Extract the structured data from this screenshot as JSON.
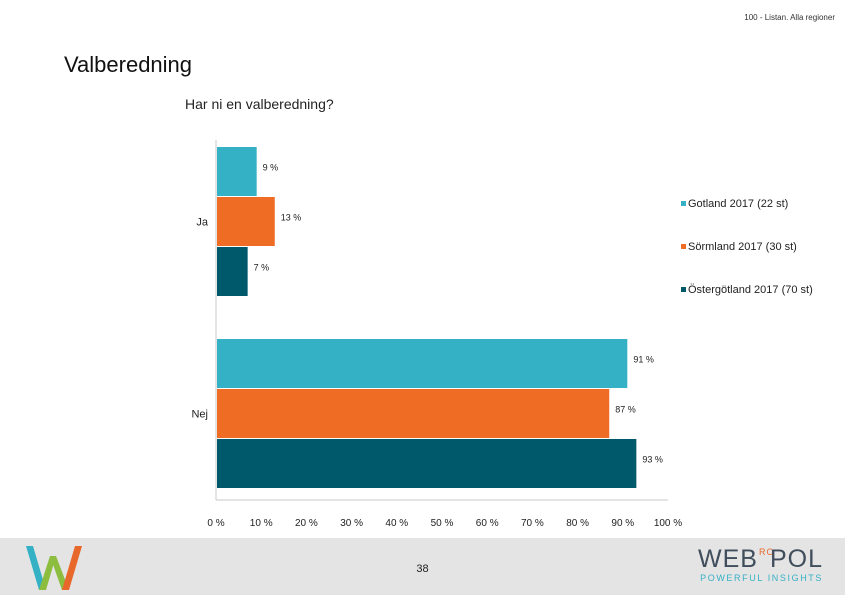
{
  "header": {
    "note": "100 - Listan. Alla regioner",
    "title": "Valberedning"
  },
  "footer": {
    "page_number": "38",
    "brand": {
      "word_left": "WEB",
      "word_mid": "RO",
      "word_right": "POL",
      "tagline": "POWERFUL INSIGHTS"
    }
  },
  "colors": {
    "gotland": "#35b1c6",
    "sormland": "#ef6c25",
    "ostergotland": "#00586b",
    "logo_w_teal": "#35b1c6",
    "logo_w_green": "#8dbd3f",
    "logo_w_orange": "#e8672a"
  },
  "chart_data": {
    "type": "bar",
    "orientation": "horizontal",
    "title": "Har ni en valberedning?",
    "categories": [
      "Ja",
      "Nej"
    ],
    "series": [
      {
        "name": "Gotland 2017 (22 st)",
        "values": [
          9,
          91
        ],
        "labels": [
          "9 %",
          "91 %"
        ],
        "color": "#35b1c6"
      },
      {
        "name": "Sörmland 2017 (30 st)",
        "values": [
          13,
          87
        ],
        "labels": [
          "13 %",
          "87 %"
        ],
        "color": "#ef6c25"
      },
      {
        "name": "Östergötland 2017 (70 st)",
        "values": [
          7,
          93
        ],
        "labels": [
          "7 %",
          "93 %"
        ],
        "color": "#00586b"
      }
    ],
    "xlim": [
      0,
      100
    ],
    "xticks": [
      "0 %",
      "10 %",
      "20 %",
      "30 %",
      "40 %",
      "50 %",
      "60 %",
      "70 %",
      "80 %",
      "90 %",
      "100 %"
    ],
    "grid": false,
    "legend_position": "right"
  }
}
